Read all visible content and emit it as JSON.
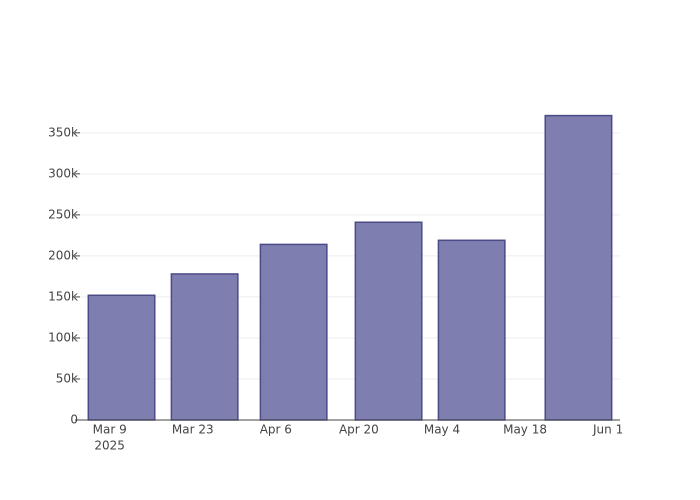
{
  "chart_data": {
    "type": "bar",
    "x": [
      "2025-03-11",
      "2025-03-25",
      "2025-04-09",
      "2025-04-25",
      "2025-05-09",
      "2025-05-27"
    ],
    "values": [
      152000,
      178000,
      214000,
      241000,
      219000,
      371000
    ],
    "color": "#7e7eb1",
    "edge_color": "#4b4b87",
    "xlim": [
      "2025-03-04",
      "2025-06-03"
    ],
    "xticks": [
      {
        "value": "2025-03-09",
        "label": "Mar 9"
      },
      {
        "value": "2025-03-23",
        "label": "Mar 23"
      },
      {
        "value": "2025-04-06",
        "label": "Apr 6"
      },
      {
        "value": "2025-04-20",
        "label": "Apr 20"
      },
      {
        "value": "2025-05-04",
        "label": "May 4"
      },
      {
        "value": "2025-05-18",
        "label": "May 18"
      },
      {
        "value": "2025-06-01",
        "label": "Jun 1"
      }
    ],
    "x_year_label": "2025",
    "ylim": [
      0,
      390000
    ],
    "yticks": [
      0,
      {
        "value": 50000,
        "label": "50k"
      },
      {
        "value": 100000,
        "label": "100k"
      },
      {
        "value": 150000,
        "label": "150k"
      },
      {
        "value": 200000,
        "label": "200k"
      },
      {
        "value": 250000,
        "label": "250k"
      },
      {
        "value": 300000,
        "label": "300k"
      },
      {
        "value": 350000,
        "label": "350k"
      }
    ],
    "grid": true
  }
}
